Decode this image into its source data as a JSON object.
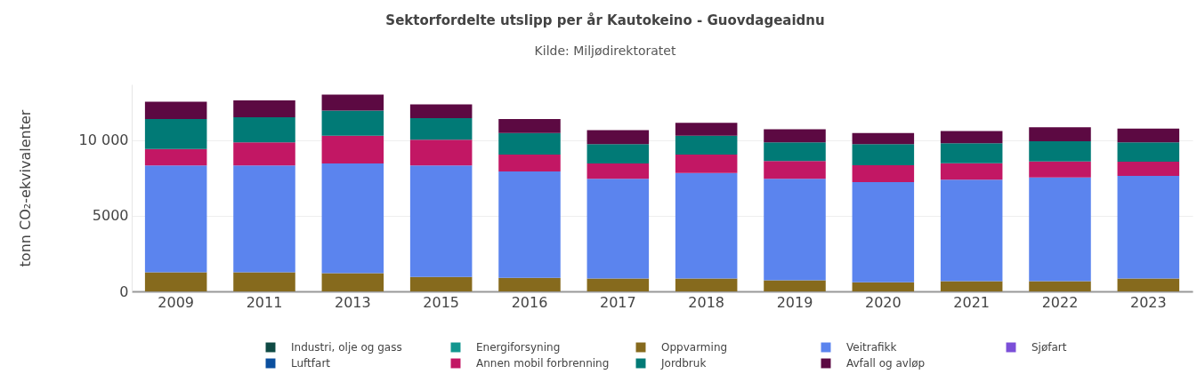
{
  "chart_data": {
    "type": "bar",
    "title": "Sektorfordelte utslipp per år Kautokeino - Guovdageaidnu",
    "subtitle": "Kilde: Miljødirektoratet",
    "ylabel": "tonn CO₂-ekvivalenter",
    "categories": [
      "2009",
      "2011",
      "2013",
      "2015",
      "2016",
      "2017",
      "2018",
      "2019",
      "2020",
      "2021",
      "2022",
      "2023"
    ],
    "series": [
      {
        "name": "Industri, olje og gass",
        "color": "#0f4a44",
        "values": [
          null,
          null,
          null,
          null,
          null,
          null,
          null,
          null,
          null,
          null,
          null,
          null
        ]
      },
      {
        "name": "Energiforsyning",
        "color": "#12968f",
        "values": [
          null,
          null,
          null,
          null,
          null,
          null,
          null,
          null,
          null,
          null,
          null,
          null
        ]
      },
      {
        "name": "Oppvarming",
        "color": "#866a1d",
        "values": [
          1270,
          1270,
          1210,
          960,
          900,
          850,
          850,
          730,
          600,
          670,
          670,
          850
        ]
      },
      {
        "name": "Veitrafikk",
        "color": "#5b84ee",
        "values": [
          7060,
          7060,
          7250,
          7370,
          7040,
          6610,
          6980,
          6730,
          6630,
          6730,
          6870,
          6800
        ]
      },
      {
        "name": "Sjøfart",
        "color": "#7b4fd8",
        "values": [
          null,
          null,
          null,
          null,
          null,
          null,
          null,
          null,
          null,
          null,
          null,
          null
        ]
      },
      {
        "name": "Luftfart",
        "color": "#0b4f9e",
        "values": [
          null,
          null,
          null,
          null,
          null,
          null,
          null,
          null,
          null,
          null,
          null,
          null
        ]
      },
      {
        "name": "Annen mobil forbrenning",
        "color": "#c21764",
        "values": [
          1090,
          1540,
          1850,
          1710,
          1120,
          1000,
          1230,
          1170,
          1120,
          1080,
          1060,
          940
        ]
      },
      {
        "name": "Jordbruk",
        "color": "#017a76",
        "values": [
          1980,
          1650,
          1650,
          1420,
          1420,
          1290,
          1250,
          1230,
          1400,
          1330,
          1330,
          1270
        ]
      },
      {
        "name": "Avfall og avløp",
        "color": "#5c0942",
        "values": [
          1160,
          1120,
          1060,
          920,
          920,
          920,
          850,
          870,
          730,
          810,
          940,
          920
        ]
      }
    ],
    "stacked": true,
    "ylim": [
      0,
      13700
    ],
    "yticks": [
      0,
      5000,
      {
        "value": 10000,
        "label": "10 000"
      }
    ],
    "grid": "y",
    "legend": "bottom"
  }
}
